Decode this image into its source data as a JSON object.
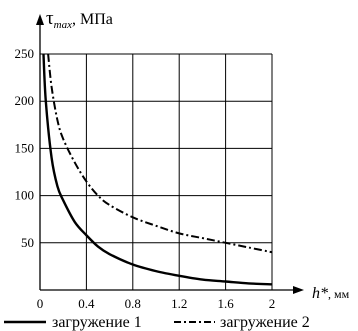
{
  "chart_data": {
    "type": "line",
    "ylabel": "τmax, МПа",
    "ylabel_main": "τ",
    "ylabel_sub": "max",
    "ylabel_unit": ", МПа",
    "xlabel": "h*, мм",
    "xlabel_main": "h*",
    "xlabel_unit": ", мм",
    "xlim": [
      0,
      2
    ],
    "ylim": [
      0,
      250
    ],
    "x_ticks": [
      "0",
      "0.4",
      "0.8",
      "1.2",
      "1.6",
      "2"
    ],
    "y_ticks": [
      "50",
      "100",
      "150",
      "200",
      "250"
    ],
    "grid": true,
    "legend_position": "bottom",
    "series": [
      {
        "name": "загружение 1",
        "style": "solid",
        "color": "#000000",
        "x": [
          0.03,
          0.05,
          0.1,
          0.15,
          0.2,
          0.3,
          0.4,
          0.5,
          0.6,
          0.8,
          1.0,
          1.2,
          1.4,
          1.6,
          1.8,
          2.0
        ],
        "y": [
          250,
          200,
          140,
          110,
          95,
          72,
          58,
          46,
          38,
          27,
          20,
          15,
          11,
          9,
          7,
          6
        ]
      },
      {
        "name": "загружение 2",
        "style": "dash-dot",
        "color": "#000000",
        "x": [
          0.07,
          0.1,
          0.15,
          0.2,
          0.3,
          0.4,
          0.5,
          0.6,
          0.8,
          1.0,
          1.2,
          1.4,
          1.6,
          1.8,
          2.0
        ],
        "y": [
          250,
          215,
          180,
          160,
          135,
          115,
          100,
          90,
          77,
          68,
          60,
          55,
          50,
          45,
          40
        ]
      }
    ]
  }
}
